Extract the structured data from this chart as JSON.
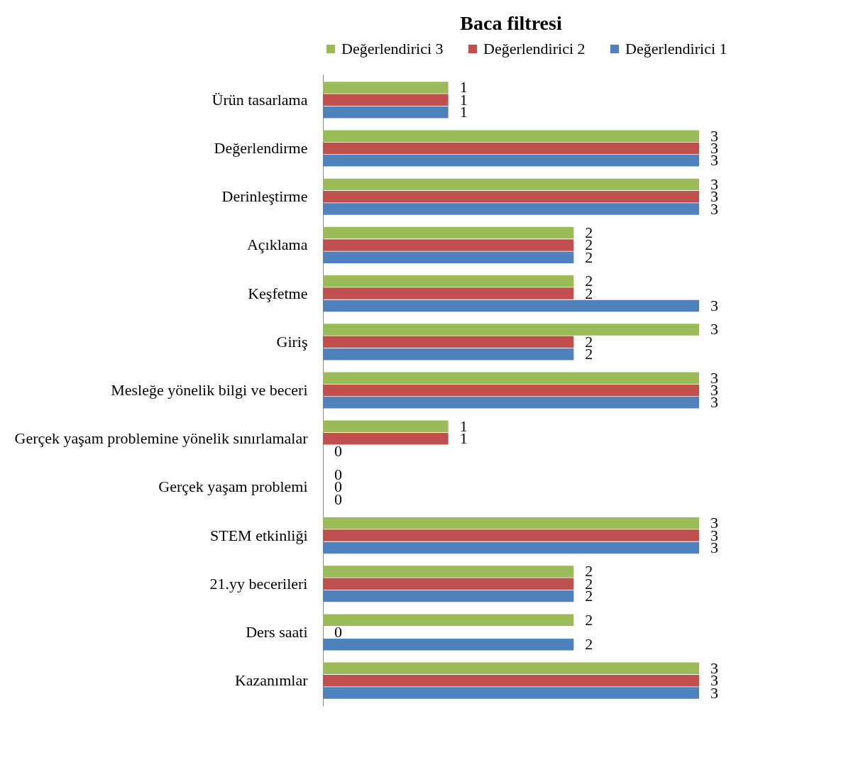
{
  "chart_data": {
    "type": "bar",
    "title": "Baca filtresi",
    "orientation": "horizontal",
    "data_labels": true,
    "legend": "top",
    "grid": false,
    "categories": [
      "Ürün tasarlama",
      "Değerlendirme",
      "Derinleştirme",
      "Açıklama",
      "Keşfetme",
      "Giriş",
      "Mesleğe yönelik bilgi ve beceri",
      "Gerçek yaşam problemine yönelik sınırlamalar",
      "Gerçek yaşam problemi",
      "STEM etkinliği",
      "21.yy becerileri",
      "Ders saati",
      "Kazanımlar"
    ],
    "series": [
      {
        "name": "Değerlendirici 3",
        "color": "#9bbb59",
        "values": [
          1,
          3,
          3,
          2,
          2,
          3,
          3,
          1,
          0,
          3,
          2,
          2,
          3
        ]
      },
      {
        "name": "Değerlendirici 2",
        "color": "#c0504d",
        "values": [
          1,
          3,
          3,
          2,
          2,
          2,
          3,
          1,
          0,
          3,
          2,
          0,
          3
        ]
      },
      {
        "name": "Değerlendirici 1",
        "color": "#4f81bd",
        "values": [
          1,
          3,
          3,
          2,
          3,
          2,
          3,
          0,
          0,
          3,
          2,
          2,
          3
        ]
      }
    ]
  }
}
